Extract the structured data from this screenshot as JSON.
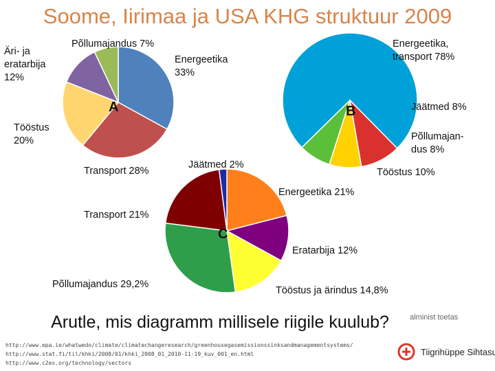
{
  "title": "Soome, Iirimaa ja USA KHG struktuur 2009",
  "chart_data": [
    {
      "type": "pie",
      "tag": "A",
      "slices": [
        {
          "name": "Energeetika",
          "value": 33,
          "label": "Energeetika\n33%",
          "color": "#4f81bd"
        },
        {
          "name": "Transport",
          "value": 28,
          "label": "Transport 28%",
          "color": "#c0504d"
        },
        {
          "name": "Tööstus",
          "value": 20,
          "label": "Tööstus\n20%",
          "color": "#ffd56f"
        },
        {
          "name": "Äri- ja eratarbija",
          "value": 12,
          "label": "Äri- ja\neratarbija\n12%",
          "color": "#8064a2"
        },
        {
          "name": "Põllumajandus",
          "value": 7,
          "label": "Põllumajandus 7%",
          "color": "#9bbb59"
        }
      ]
    },
    {
      "type": "pie",
      "tag": "B",
      "slices": [
        {
          "name": "Energeetika, transport",
          "value": 78,
          "label": "Energeetika,\ntransport 78%",
          "color": "#00a0d8"
        },
        {
          "name": "Jäätmed",
          "value": 8,
          "label": "Jäätmed 8%",
          "color": "#5bbf3a"
        },
        {
          "name": "Põllumajandus",
          "value": 8,
          "label": "Põllumajan-\ndus 8%",
          "color": "#ffd200"
        },
        {
          "name": "Tööstus",
          "value": 10,
          "label": "Tööstus 10%",
          "color": "#d9322e"
        }
      ]
    },
    {
      "type": "pie",
      "tag": "C",
      "slices": [
        {
          "name": "Energeetika",
          "value": 21,
          "label": "Energeetika 21%",
          "color": "#ff7f1a"
        },
        {
          "name": "Eratarbija",
          "value": 12,
          "label": "Eratarbija 12%",
          "color": "#7f007f"
        },
        {
          "name": "Tööstus ja ärindus",
          "value": 14.8,
          "label": "Tööstus ja ärindus 14,8%",
          "color": "#ffff33"
        },
        {
          "name": "Põllumajandus",
          "value": 29.2,
          "label": "Põllumajandus 29,2%",
          "color": "#2e9e4a"
        },
        {
          "name": "Transport",
          "value": 21,
          "label": "Transport 21%",
          "color": "#7f0000"
        },
        {
          "name": "Jäätmed",
          "value": 2,
          "label": "Jäätmed 2%",
          "color": "#1f2aa6"
        }
      ]
    }
  ],
  "question": "Arutle, mis diagramm millisele riigile kuulub?",
  "sources": [
    "http://www.epa.ie/whatwedo/climate/climatechangeresearch/greenhousegasemissionssinksandmanagementsystems/",
    "http://www.stat.fi/til/khki/2008/01/khki_2008_01_2010-11-19_kuv_001_en.html",
    "http://www.c2es.org/technology/sectors"
  ],
  "note": "alminist toetas",
  "logo_text": "Tiigrihüppe Sihtasutus"
}
